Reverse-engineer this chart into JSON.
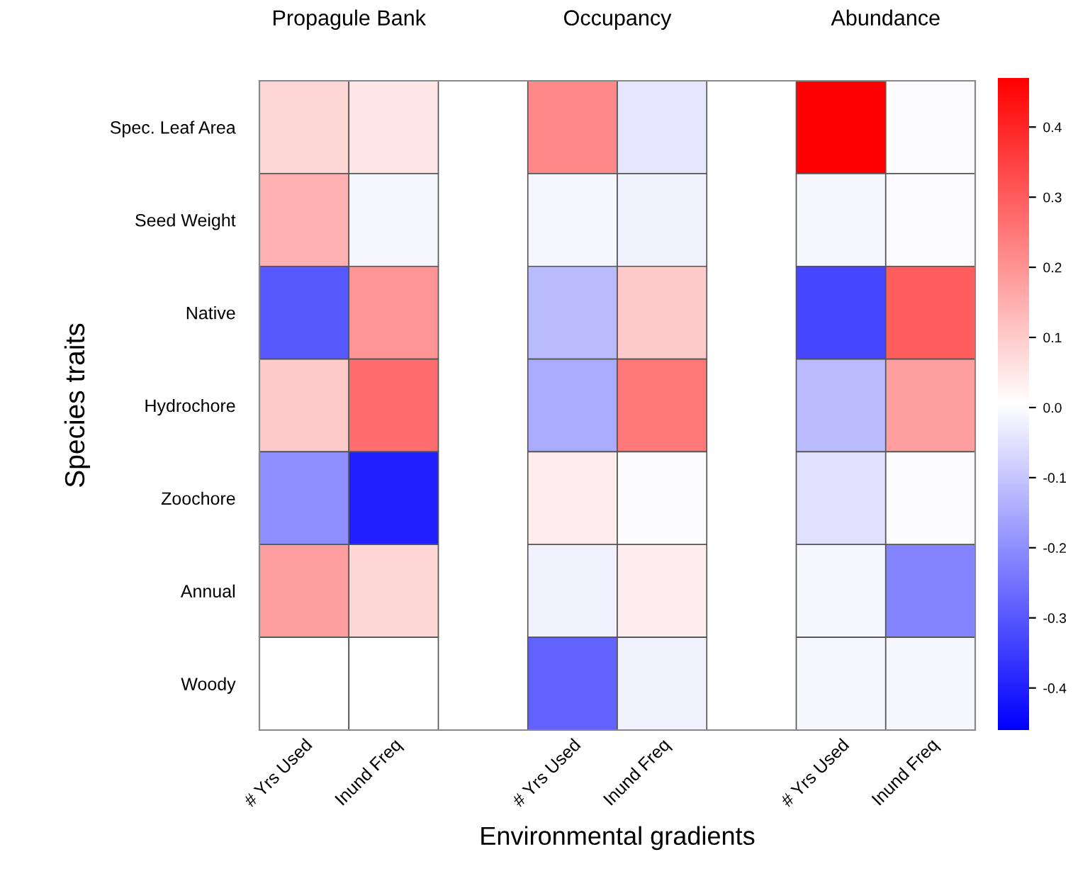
{
  "chart_data": {
    "type": "heatmap",
    "xlabel": "Environmental gradients",
    "ylabel": "Species traits",
    "annotations": [
      "Propagule Bank",
      "Occupancy",
      "Abundance"
    ],
    "categories": [
      "# Yrs Used",
      "Inund Freq",
      null,
      "# Yrs Used",
      "Inund Freq",
      null,
      "# Yrs Used",
      "Inund Freq"
    ],
    "y_categories": [
      "Spec. Leaf Area",
      "Seed Weight",
      "Native",
      "Hydrochore",
      "Zoochore",
      "Annual",
      "Woody"
    ],
    "clim": [
      -0.46,
      0.47
    ],
    "cticks": [
      -0.4,
      -0.3,
      -0.2,
      -0.1,
      {
        "value": 0,
        "label": "0.0"
      },
      0.1,
      0.2,
      0.3,
      0.4
    ],
    "cells": [
      [
        0.08,
        0.05,
        null,
        0.22,
        -0.04,
        null,
        0.47,
        0.0
      ],
      [
        0.15,
        -0.01,
        null,
        -0.01,
        -0.02,
        null,
        -0.01,
        0.0
      ],
      [
        -0.3,
        0.2,
        null,
        -0.12,
        0.1,
        null,
        -0.33,
        0.3
      ],
      [
        0.1,
        0.27,
        null,
        -0.15,
        0.25,
        null,
        -0.12,
        0.18
      ],
      [
        -0.2,
        -0.4,
        null,
        0.04,
        0.0,
        null,
        -0.05,
        0.0
      ],
      [
        0.18,
        0.08,
        null,
        -0.02,
        0.04,
        null,
        -0.01,
        -0.22
      ],
      [
        null,
        null,
        null,
        -0.28,
        -0.02,
        null,
        -0.01,
        -0.01
      ]
    ]
  }
}
